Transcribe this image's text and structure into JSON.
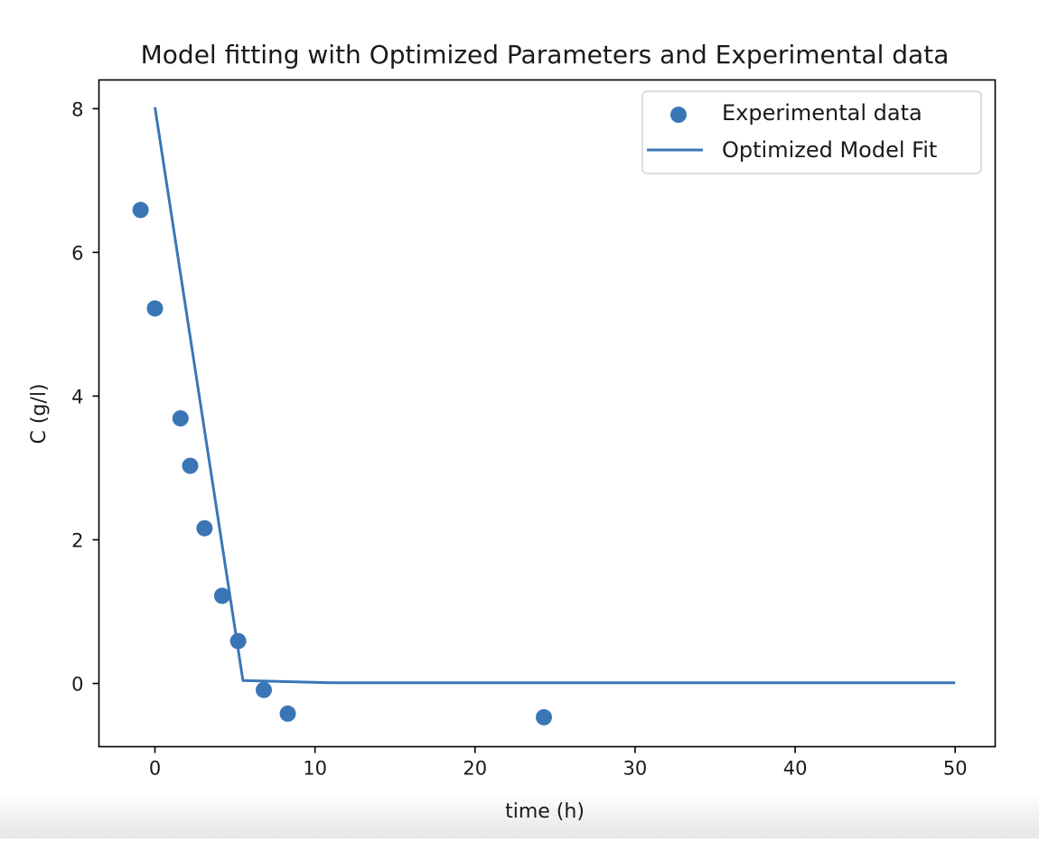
{
  "chart_data": {
    "type": "scatter",
    "title": "Model fitting with Optimized Parameters and Experimental data",
    "xlabel": "time (h)",
    "ylabel": "C (g/l)",
    "xlim": [
      -3.5,
      52.5
    ],
    "ylim": [
      -0.88,
      8.4
    ],
    "xticks": [
      0,
      10,
      20,
      30,
      40,
      50
    ],
    "yticks": [
      0,
      2,
      4,
      6,
      8
    ],
    "x_tick_labels": [
      "0",
      "10",
      "20",
      "30",
      "40",
      "50"
    ],
    "y_tick_labels": [
      "0",
      "2",
      "4",
      "6",
      "8"
    ],
    "grid": false,
    "legend_position": "top-right",
    "colors": {
      "series": "#3a76b6",
      "axis": "#000000",
      "text": "#1a1a1a"
    },
    "series": [
      {
        "name": "Experimental data",
        "kind": "scatter",
        "points": [
          {
            "x": -0.9,
            "y": 6.59
          },
          {
            "x": 0.0,
            "y": 5.22
          },
          {
            "x": 1.6,
            "y": 3.69
          },
          {
            "x": 2.2,
            "y": 3.03
          },
          {
            "x": 3.1,
            "y": 2.16
          },
          {
            "x": 4.2,
            "y": 1.22
          },
          {
            "x": 5.2,
            "y": 0.59
          },
          {
            "x": 6.8,
            "y": -0.09
          },
          {
            "x": 8.3,
            "y": -0.42
          },
          {
            "x": 24.3,
            "y": -0.47
          }
        ]
      },
      {
        "name": "Optimized Model Fit",
        "kind": "line",
        "points": [
          {
            "x": 0.0,
            "y": 8.02
          },
          {
            "x": 5.5,
            "y": 0.04
          },
          {
            "x": 11.0,
            "y": 0.01
          },
          {
            "x": 50.0,
            "y": 0.01
          }
        ]
      }
    ]
  }
}
